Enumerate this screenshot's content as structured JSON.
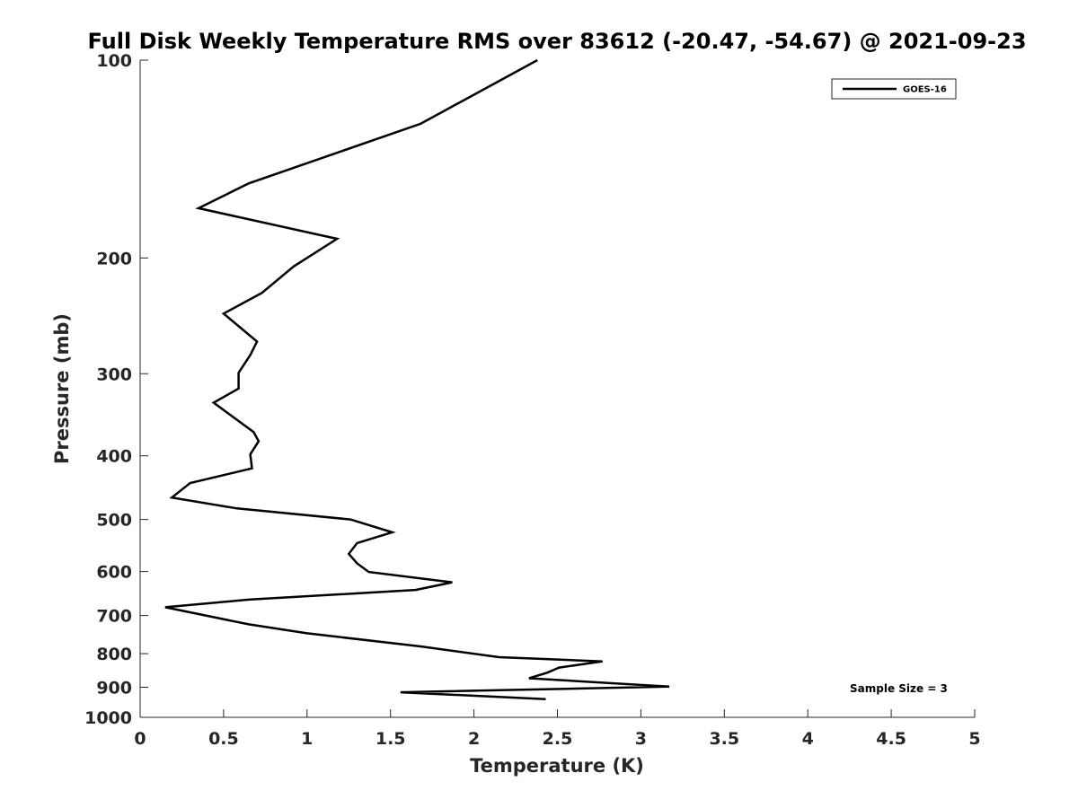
{
  "chart_data": {
    "type": "line",
    "title": "Full Disk Weekly Temperature RMS over 83612 (-20.47, -54.67) @ 2021-09-23",
    "xlabel": "Temperature (K)",
    "ylabel": "Pressure (mb)",
    "xlim": [
      0,
      5
    ],
    "ylim": [
      100,
      1000
    ],
    "yscale": "log",
    "y_reversed": true,
    "x_ticks": [
      "0",
      "0.5",
      "1",
      "1.5",
      "2",
      "2.5",
      "3",
      "3.5",
      "4",
      "4.5",
      "5"
    ],
    "y_ticks": [
      "100",
      "200",
      "300",
      "400",
      "500",
      "600",
      "700",
      "800",
      "900",
      "1000"
    ],
    "grid": false,
    "legend": {
      "entries": [
        "GOES-16"
      ],
      "placement": "top-right"
    },
    "annotation": "Sample Size = 3",
    "series": [
      {
        "name": "GOES-16",
        "color": "#000000",
        "points": [
          [
            2.38,
            100
          ],
          [
            1.68,
            125
          ],
          [
            0.65,
            154
          ],
          [
            0.35,
            168
          ],
          [
            1.18,
            187
          ],
          [
            0.92,
            206
          ],
          [
            0.73,
            226
          ],
          [
            0.5,
            243
          ],
          [
            0.7,
            268
          ],
          [
            0.66,
            281
          ],
          [
            0.59,
            299
          ],
          [
            0.59,
            316
          ],
          [
            0.44,
            332
          ],
          [
            0.68,
            368
          ],
          [
            0.71,
            380
          ],
          [
            0.66,
            398
          ],
          [
            0.67,
            418
          ],
          [
            0.3,
            440
          ],
          [
            0.19,
            463
          ],
          [
            0.58,
            481
          ],
          [
            1.26,
            500
          ],
          [
            1.51,
            523
          ],
          [
            1.3,
            543
          ],
          [
            1.25,
            564
          ],
          [
            1.3,
            583
          ],
          [
            1.37,
            601
          ],
          [
            1.87,
            623
          ],
          [
            1.65,
            640
          ],
          [
            0.65,
            662
          ],
          [
            0.15,
            680
          ],
          [
            0.65,
            722
          ],
          [
            1.0,
            745
          ],
          [
            1.68,
            780
          ],
          [
            2.15,
            810
          ],
          [
            2.77,
            822
          ],
          [
            2.51,
            840
          ],
          [
            2.44,
            855
          ],
          [
            2.33,
            872
          ],
          [
            3.17,
            898
          ],
          [
            1.56,
            916
          ],
          [
            2.43,
            938
          ]
        ]
      }
    ]
  }
}
